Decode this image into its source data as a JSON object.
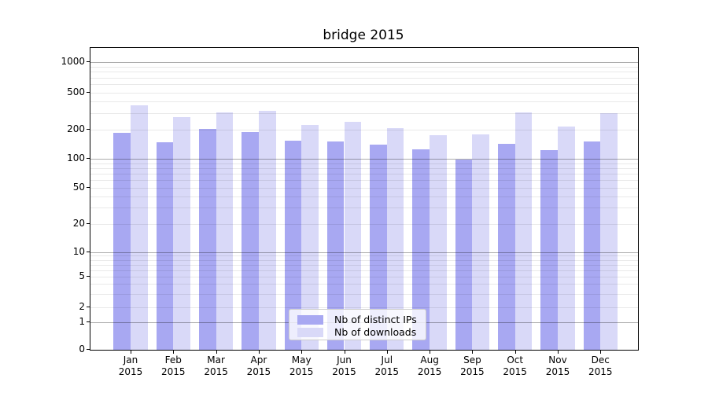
{
  "title": "bridge 2015",
  "chart_data": {
    "type": "bar",
    "title": "bridge 2015",
    "categories": [
      "Jan 2015",
      "Feb 2015",
      "Mar 2015",
      "Apr 2015",
      "May 2015",
      "Jun 2015",
      "Jul 2015",
      "Aug 2015",
      "Sep 2015",
      "Oct 2015",
      "Nov 2015",
      "Dec 2015"
    ],
    "series": [
      {
        "name": "Nb of distinct IPs",
        "color": "#a8a8f2",
        "values": [
          185,
          147,
          204,
          190,
          155,
          150,
          140,
          125,
          98,
          144,
          124,
          152
        ]
      },
      {
        "name": "Nb of downloads",
        "color": "#d9d9f8",
        "values": [
          365,
          271,
          305,
          317,
          224,
          245,
          208,
          176,
          178,
          306,
          216,
          299
        ]
      }
    ],
    "xlabel": "",
    "ylabel": "",
    "yscale": "symlog",
    "yticks": [
      0,
      1,
      2,
      5,
      10,
      20,
      50,
      100,
      200,
      500,
      1000
    ],
    "ylim": [
      0,
      1300
    ],
    "grid": true,
    "legend_position": "lower center"
  },
  "colors": {
    "bar_ips": "#a8a8f2",
    "bar_downloads": "#d9d9f8",
    "grid_major": "rgba(0,0,0,0.32)",
    "grid_minor": "rgba(0,0,0,0.085)",
    "spine": "#000000",
    "legend_border": "#cccccc"
  }
}
